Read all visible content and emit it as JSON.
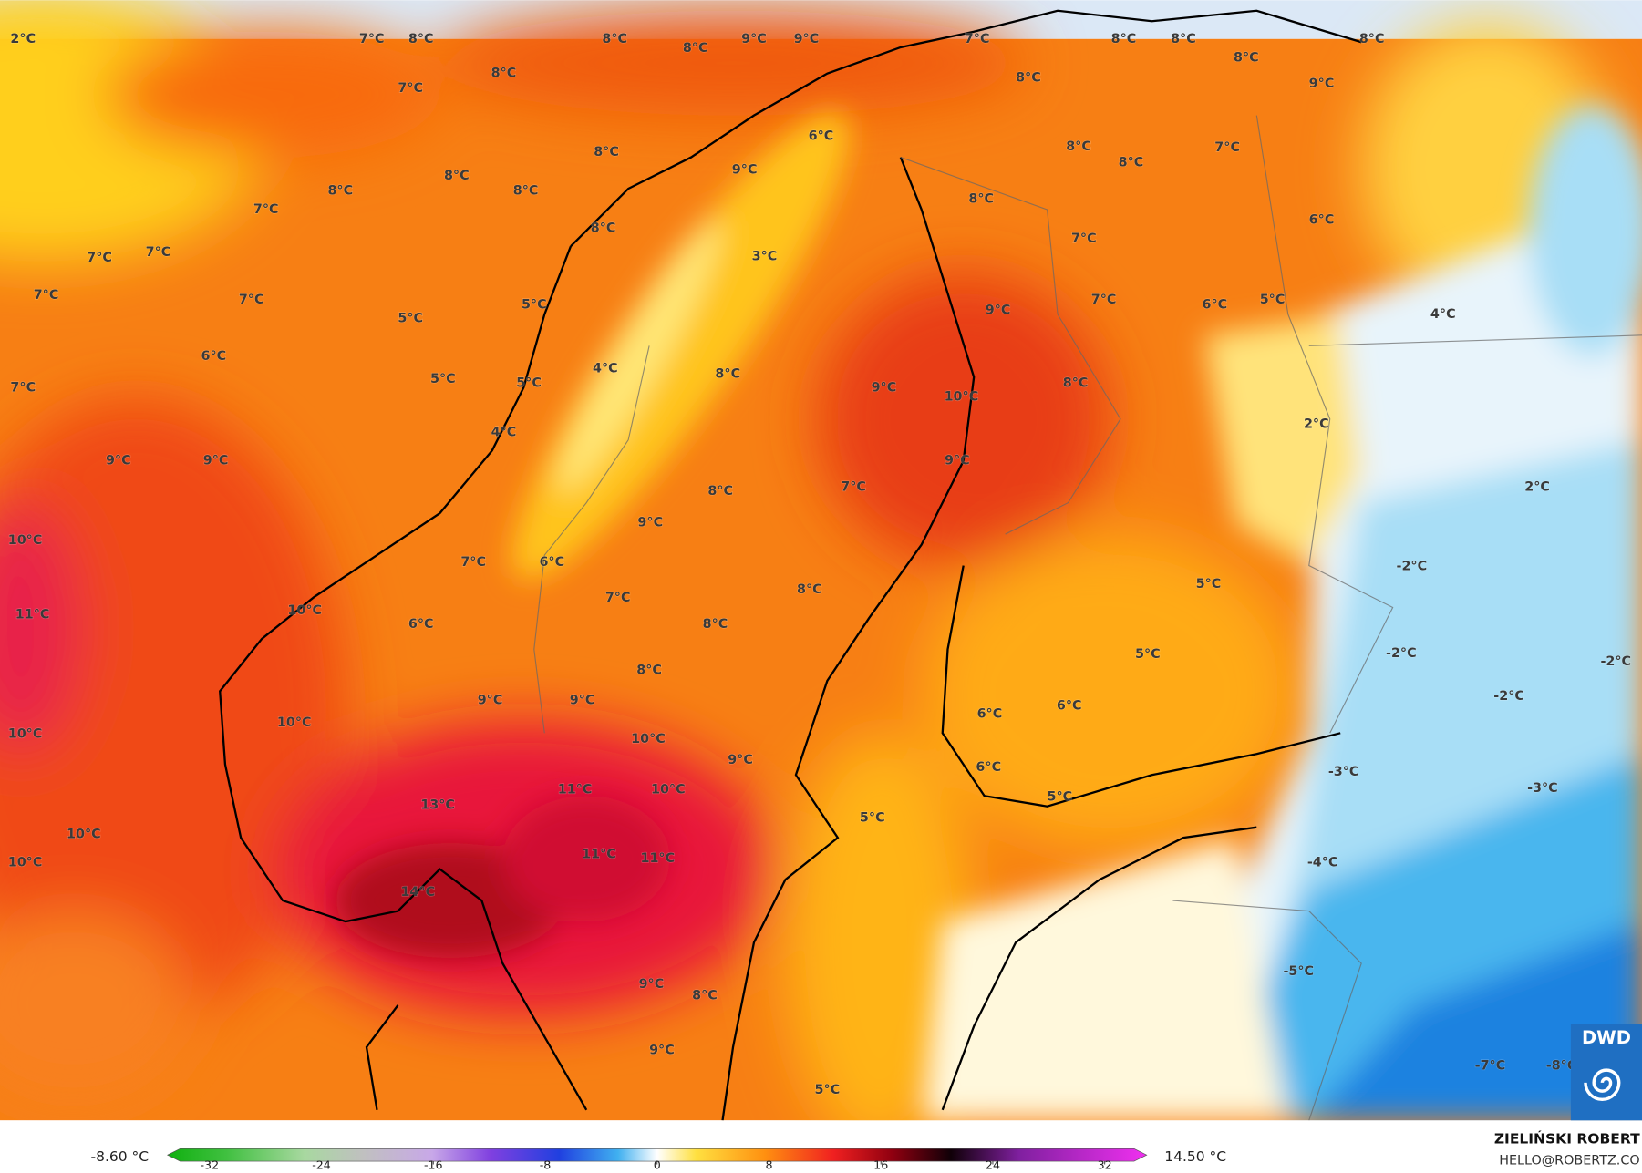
{
  "map": {
    "labels": [
      "2°C",
      "7°C",
      "8°C",
      "8°C",
      "8°C",
      "9°C",
      "9°C",
      "7°C",
      "8°C",
      "8°C",
      "8°C",
      "8°C",
      "8°C",
      "7°C",
      "8°C",
      "9°C",
      "6°C",
      "8°C",
      "8°C",
      "7°C",
      "8°C",
      "8°C",
      "9°C",
      "8°C",
      "8°C",
      "8°C",
      "7°C",
      "8°C",
      "6°C",
      "7°C",
      "7°C",
      "3°C",
      "7°C",
      "7°C",
      "7°C",
      "5°C",
      "5°C",
      "9°C",
      "7°C",
      "6°C",
      "5°C",
      "4°C",
      "6°C",
      "4°C",
      "8°C",
      "7°C",
      "5°C",
      "5°C",
      "9°C",
      "10°C",
      "8°C",
      "4°C",
      "2°C",
      "9°C",
      "9°C",
      "9°C",
      "8°C",
      "7°C",
      "2°C",
      "9°C",
      "10°C",
      "7°C",
      "6°C",
      "-2°C",
      "5°C",
      "7°C",
      "8°C",
      "11°C",
      "10°C",
      "6°C",
      "8°C",
      "5°C",
      "-2°C",
      "-2°C",
      "8°C",
      "9°C",
      "9°C",
      "-2°C",
      "6°C",
      "6°C",
      "10°C",
      "10°C",
      "10°C",
      "9°C",
      "11°C",
      "10°C",
      "6°C",
      "5°C",
      "-3°C",
      "-3°C",
      "13°C",
      "5°C",
      "10°C",
      "10°C",
      "11°C",
      "11°C",
      "-4°C",
      "14°C",
      "-5°C",
      "9°C",
      "8°C",
      "9°C",
      "-7°C",
      "-8°C",
      "5°C"
    ]
  },
  "colorbar": {
    "min_label": "-8.60 °C",
    "max_label": "14.50 °C",
    "range": [
      -35,
      35
    ],
    "ticks": [
      -32,
      -24,
      -16,
      -8,
      0,
      8,
      16,
      24,
      32
    ]
  },
  "credit": {
    "author": "ZIELIŃSKI ROBERT",
    "email": "HELLO@ROBERTZ.CO"
  },
  "logo": "DWD"
}
